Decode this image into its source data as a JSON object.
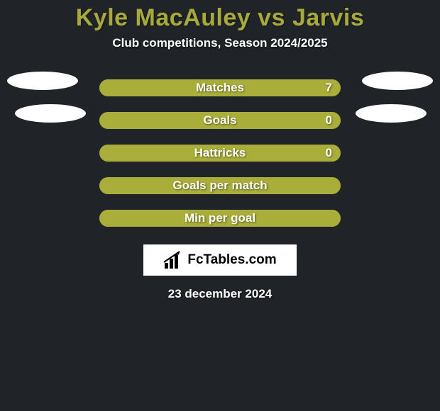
{
  "background_color": "#202428",
  "title": {
    "text": "Kyle MacAuley vs Jarvis",
    "color": "#a7aa3a",
    "fontsize": 34
  },
  "subtitle": {
    "text": "Club competitions, Season 2024/2025",
    "color": "#ffffff",
    "fontsize": 17
  },
  "bar_track_color": "#a9ad39",
  "bar_fill_color": "#a9ad39",
  "bar_fill_opacity": 1,
  "bar_radius": 12,
  "rows": [
    {
      "label": "Matches",
      "value_right": "7",
      "left_pct": 0,
      "right_pct": 100,
      "show_value": true
    },
    {
      "label": "Goals",
      "value_right": "0",
      "left_pct": 0,
      "right_pct": 100,
      "show_value": true
    },
    {
      "label": "Hattricks",
      "value_right": "0",
      "left_pct": 0,
      "right_pct": 100,
      "show_value": true
    },
    {
      "label": "Goals per match",
      "value_right": "",
      "left_pct": 0,
      "right_pct": 100,
      "show_value": false
    },
    {
      "label": "Min per goal",
      "value_right": "",
      "left_pct": 0,
      "right_pct": 100,
      "show_value": false
    }
  ],
  "ellipses": {
    "show": true,
    "color": "#ffffff"
  },
  "badge": {
    "text": "FcTables.com",
    "icon_color": "#000000",
    "bg": "#ffffff"
  },
  "date": {
    "text": "23 december 2024",
    "color": "#ffffff",
    "fontsize": 17
  }
}
